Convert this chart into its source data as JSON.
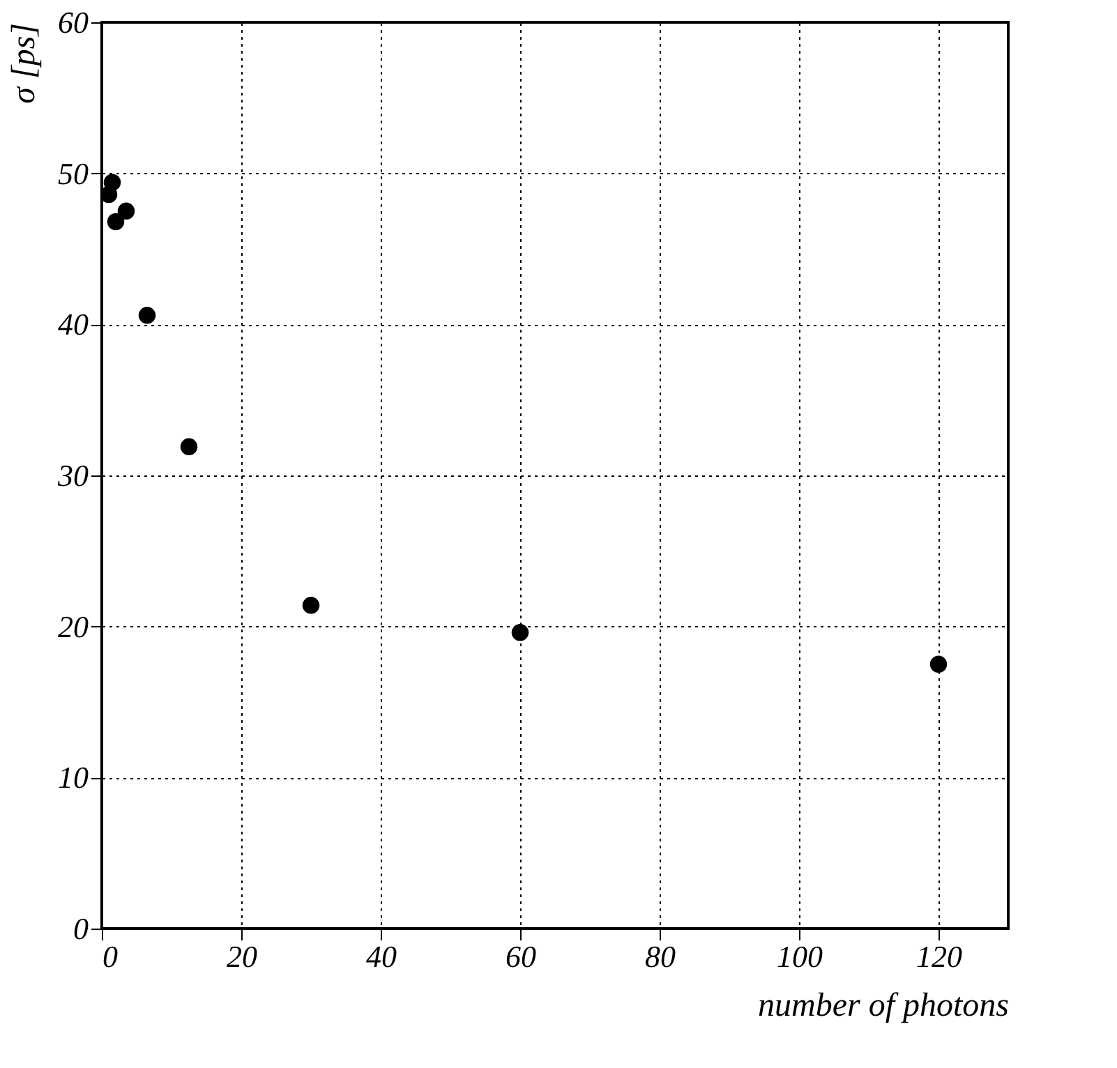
{
  "chart_data": {
    "type": "scatter",
    "xlabel": "number of photons",
    "ylabel": "σ [ps]",
    "x": [
      1.5,
      1,
      2,
      3.5,
      6.5,
      12.5,
      30,
      60,
      120
    ],
    "series": [
      {
        "color": "#000000",
        "values": [
          49.4,
          48.6,
          46.8,
          47.5,
          40.6,
          31.9,
          21.4,
          19.6,
          17.5
        ]
      }
    ],
    "xlim": [
      0,
      130
    ],
    "xticks": [
      0,
      20,
      40,
      60,
      80,
      100,
      120
    ],
    "ylim": [
      0,
      60
    ],
    "yticks": [
      0,
      10,
      20,
      30,
      40,
      50,
      60
    ],
    "grid": true,
    "marker": "circle",
    "legend": false
  }
}
